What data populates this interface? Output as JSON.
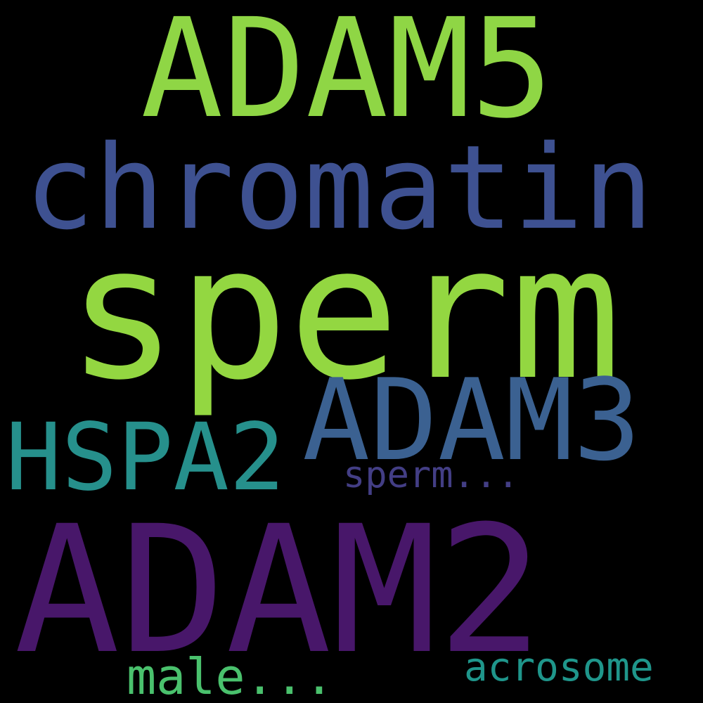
{
  "background_color": "#000000",
  "words": [
    {
      "id": "adam5",
      "text": "ADAM5",
      "color": "#8fd645"
    },
    {
      "id": "chromatin",
      "text": "chromatin",
      "color": "#3e5191"
    },
    {
      "id": "sperm_big",
      "text": "sperm",
      "color": "#93d741"
    },
    {
      "id": "adam3",
      "text": "ADAM3",
      "color": "#3b6191"
    },
    {
      "id": "hspa2",
      "text": "HSPA2",
      "color": "#26908c"
    },
    {
      "id": "sperm_sm",
      "text": "sperm...",
      "color": "#433e85"
    },
    {
      "id": "adam2",
      "text": "ADAM2",
      "color": "#48176a"
    },
    {
      "id": "male",
      "text": "male...",
      "color": "#4ac16d"
    },
    {
      "id": "acrosome",
      "text": "acrosome",
      "color": "#1f968b"
    }
  ]
}
